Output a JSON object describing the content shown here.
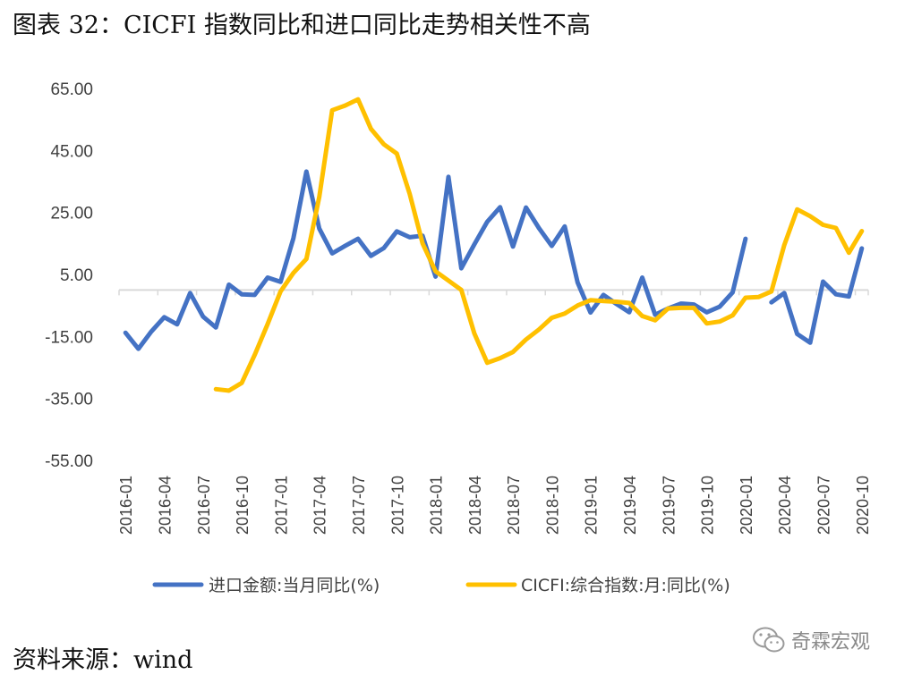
{
  "title": "图表 32：CICFI 指数同比和进口同比走势相关性不高",
  "source": "资料来源：wind",
  "watermark": {
    "text": "奇霖宏观",
    "icon": "wechat-icon"
  },
  "chart_data": {
    "type": "line",
    "title": "图表 32：CICFI 指数同比和进口同比走势相关性不高",
    "xlabel": "",
    "ylabel": "",
    "ylim": [
      -55,
      65
    ],
    "y_ticks": [
      "65.00",
      "45.00",
      "25.00",
      "5.00",
      "-15.00",
      "-35.00",
      "-55.00"
    ],
    "grid": false,
    "legend_position": "bottom",
    "x_tick_labels": [
      "2016-01",
      "2016-04",
      "2016-07",
      "2016-10",
      "2017-01",
      "2017-04",
      "2017-07",
      "2017-10",
      "2018-01",
      "2018-04",
      "2018-07",
      "2018-10",
      "2019-01",
      "2019-04",
      "2019-07",
      "2019-10",
      "2020-01",
      "2020-04",
      "2020-07",
      "2020-10"
    ],
    "x": [
      "2016-01",
      "2016-02",
      "2016-03",
      "2016-04",
      "2016-05",
      "2016-06",
      "2016-07",
      "2016-08",
      "2016-09",
      "2016-10",
      "2016-11",
      "2016-12",
      "2017-01",
      "2017-02",
      "2017-03",
      "2017-04",
      "2017-05",
      "2017-06",
      "2017-07",
      "2017-08",
      "2017-09",
      "2017-10",
      "2017-11",
      "2017-12",
      "2018-01",
      "2018-02",
      "2018-03",
      "2018-04",
      "2018-05",
      "2018-06",
      "2018-07",
      "2018-08",
      "2018-09",
      "2018-10",
      "2018-11",
      "2018-12",
      "2019-01",
      "2019-02",
      "2019-03",
      "2019-04",
      "2019-05",
      "2019-06",
      "2019-07",
      "2019-08",
      "2019-09",
      "2019-10",
      "2019-11",
      "2019-12",
      "2020-01",
      "2020-02",
      "2020-03",
      "2020-04",
      "2020-05",
      "2020-06",
      "2020-07",
      "2020-08",
      "2020-09",
      "2020-10"
    ],
    "series": [
      {
        "name": "进口金额:当月同比(%)",
        "color": "#4472C4",
        "values": [
          -13.8,
          -19.0,
          -13.4,
          -8.8,
          -11.1,
          -1.0,
          -8.6,
          -12.1,
          1.7,
          -1.4,
          -1.6,
          4.0,
          2.6,
          16.7,
          38.2,
          19.8,
          11.8,
          14.2,
          16.5,
          11.0,
          13.5,
          18.9,
          17.0,
          17.5,
          4.3,
          36.5,
          7.0,
          14.7,
          22.0,
          26.7,
          14.0,
          26.6,
          20.0,
          14.2,
          20.5,
          2.4,
          -7.3,
          -1.6,
          -4.5,
          -7.2,
          4.0,
          -8.0,
          -6.0,
          -4.4,
          -4.7,
          -7.2,
          -5.4,
          -0.8,
          16.5,
          null,
          -4.0,
          -1.0,
          -14.2,
          -17.0,
          2.7,
          -1.4,
          -2.1,
          13.4
        ]
      },
      {
        "name": "CICFI:综合指数:月:同比(%)",
        "color": "#FFC000",
        "values": [
          null,
          null,
          null,
          null,
          null,
          null,
          null,
          -32.0,
          -32.5,
          -30.0,
          -21.0,
          -11.0,
          -0.5,
          5.5,
          10.0,
          30.0,
          58.0,
          59.5,
          61.5,
          52.0,
          47.0,
          44.0,
          31.0,
          15.0,
          6.0,
          3.0,
          0.0,
          -14.0,
          -23.5,
          -22.0,
          -20.0,
          -16.0,
          -12.8,
          -9.0,
          -7.6,
          -5.0,
          -3.3,
          -3.6,
          -3.8,
          -4.2,
          -8.4,
          -9.8,
          -6.0,
          -5.8,
          -5.8,
          -10.8,
          -10.2,
          -8.2,
          -2.5,
          -2.3,
          -0.5,
          14.5,
          26.0,
          23.8,
          21.0,
          20.0,
          12.0,
          19.0
        ]
      }
    ]
  }
}
